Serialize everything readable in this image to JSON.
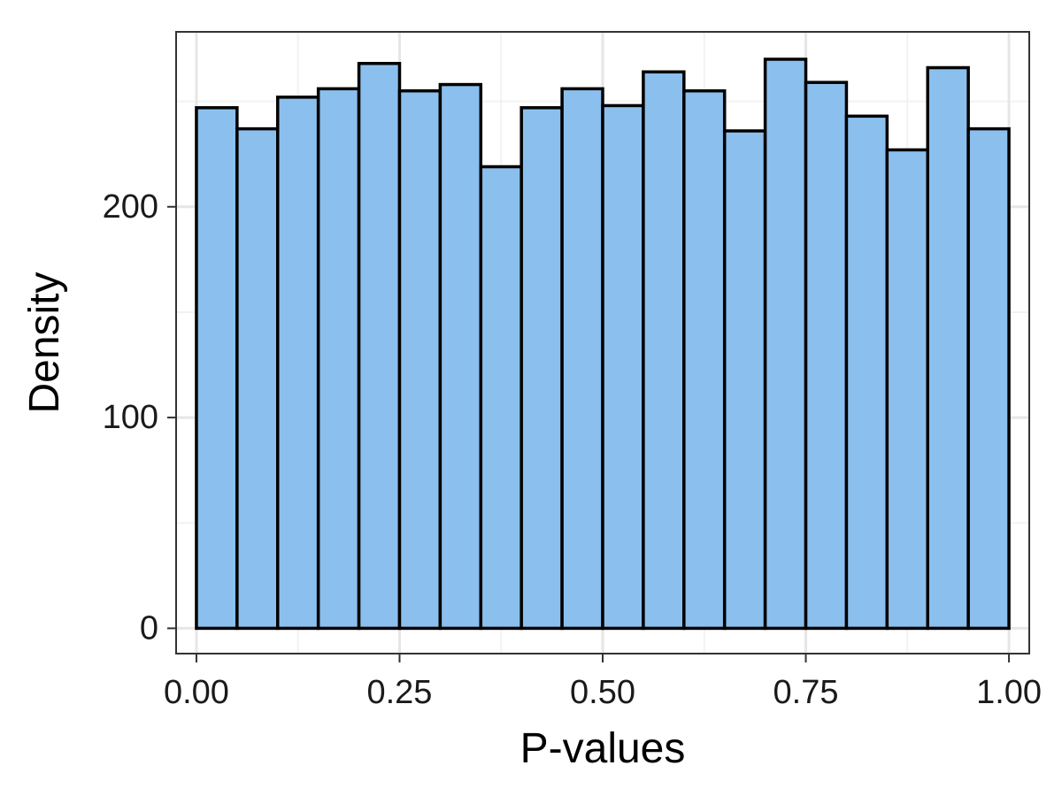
{
  "chart_data": {
    "type": "bar",
    "title": "",
    "xlabel": "P-values",
    "ylabel": "Density",
    "x_ticks": [
      "0.00",
      "0.25",
      "0.50",
      "0.75",
      "1.00"
    ],
    "y_ticks": [
      "0",
      "100",
      "200"
    ],
    "xlim": [
      -0.025,
      1.025
    ],
    "ylim": [
      -12,
      283
    ],
    "grid": true,
    "bin_width": 0.05,
    "bin_starts": [
      0.0,
      0.05,
      0.1,
      0.15,
      0.2,
      0.25,
      0.3,
      0.35,
      0.4,
      0.45,
      0.5,
      0.55,
      0.6,
      0.65,
      0.7,
      0.75,
      0.8,
      0.85,
      0.9,
      0.95
    ],
    "values": [
      247,
      237,
      252,
      256,
      268,
      255,
      258,
      219,
      247,
      256,
      248,
      264,
      255,
      236,
      270,
      259,
      243,
      227,
      266,
      237
    ],
    "colors": {
      "bar_fill": "#8bbfed",
      "bar_stroke": "#000000",
      "grid_major": "#e6e6e6",
      "grid_minor": "#f2f2f2",
      "panel_border": "#333333"
    }
  }
}
